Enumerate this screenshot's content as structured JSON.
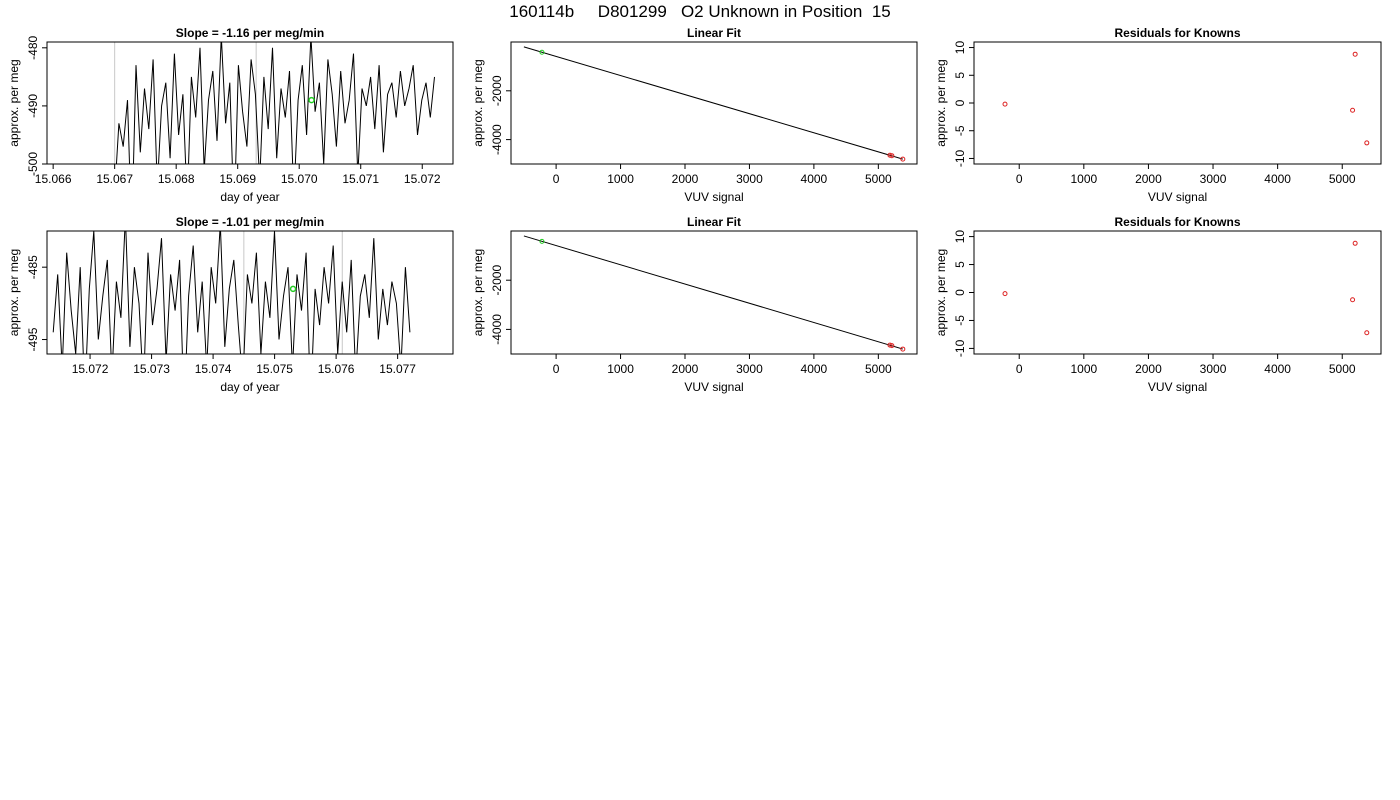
{
  "figure": {
    "title": "160114b     D801299   O2 Unknown in Position  15"
  },
  "chart_data": [
    {
      "type": "line",
      "title": "Slope =  -1.16  per meg/min",
      "xlabel": "day of year",
      "ylabel": "approx. per meg",
      "xlim": [
        15.0659,
        15.0725
      ],
      "ylim": [
        -500,
        -479
      ],
      "xticks": [
        "15.066",
        "15.067",
        "15.068",
        "15.069",
        "15.070",
        "15.071",
        "15.072"
      ],
      "yticks": [
        "-480",
        "-490",
        "-500"
      ],
      "trace": {
        "x_start": 15.067,
        "x_end": 15.0722,
        "values": [
          -505,
          -493,
          -497,
          -489,
          -512,
          -483,
          -498,
          -487,
          -494,
          -482,
          -504,
          -490,
          -486,
          -499,
          -481,
          -495,
          -488,
          -507,
          -485,
          -492,
          -480,
          -501,
          -489,
          -484,
          -496,
          -478,
          -493,
          -486,
          -510,
          -483,
          -491,
          -497,
          -482,
          -488,
          -503,
          -485,
          -494,
          -480,
          -499,
          -487,
          -492,
          -484,
          -506,
          -489,
          -483,
          -495,
          -478,
          -491,
          -486,
          -500,
          -482,
          -488,
          -497,
          -484,
          -493,
          -489,
          -481,
          -502,
          -487,
          -490,
          -485,
          -494,
          -483,
          -498,
          -488,
          -486,
          -492,
          -484,
          -490,
          -487,
          -483,
          -495,
          -489,
          -486,
          -492,
          -485
        ]
      },
      "marker": {
        "x": 15.0702,
        "y": -489
      },
      "vlines": [
        15.067,
        15.0693
      ],
      "colors": {
        "line": "#000000",
        "marker": "#22cc22",
        "vline": "#c8c8c8"
      }
    },
    {
      "type": "scatter",
      "title": "Linear Fit",
      "xlabel": "VUV signal",
      "ylabel": "approx. per meg",
      "xlim": [
        -700,
        5600
      ],
      "ylim": [
        -5000,
        0
      ],
      "xticks": [
        "0",
        "1000",
        "2000",
        "3000",
        "4000",
        "5000"
      ],
      "yticks": [
        "-2000",
        "-4000"
      ],
      "fit_line": [
        [
          -500,
          -200
        ],
        [
          5380,
          -4800
        ]
      ],
      "points": [
        {
          "x": -220,
          "y": -420,
          "color": "#22cc22"
        },
        {
          "x": 5180,
          "y": -4640,
          "color": "#dd2222"
        },
        {
          "x": 5210,
          "y": -4660,
          "color": "#dd2222"
        },
        {
          "x": 5380,
          "y": -4800,
          "color": "#dd2222"
        }
      ]
    },
    {
      "type": "scatter",
      "title": "Residuals for Knowns",
      "xlabel": "VUV signal",
      "ylabel": "approx. per meg",
      "xlim": [
        -700,
        5600
      ],
      "ylim": [
        -11,
        11
      ],
      "xticks": [
        "0",
        "1000",
        "2000",
        "3000",
        "4000",
        "5000"
      ],
      "yticks": [
        "10",
        "5",
        "0",
        "-5",
        "-10"
      ],
      "points": [
        {
          "x": -220,
          "y": -0.2,
          "color": "#dd2222"
        },
        {
          "x": 5200,
          "y": 8.8,
          "color": "#dd2222"
        },
        {
          "x": 5160,
          "y": -1.3,
          "color": "#dd2222"
        },
        {
          "x": 5380,
          "y": -7.2,
          "color": "#dd2222"
        }
      ]
    },
    {
      "type": "line",
      "title": "Slope =  -1.01  per meg/min",
      "xlabel": "day of year",
      "ylabel": "approx. per meg",
      "xlim": [
        15.0713,
        15.0779
      ],
      "ylim": [
        -497,
        -480
      ],
      "xticks": [
        "15.072",
        "15.073",
        "15.074",
        "15.075",
        "15.076",
        "15.077"
      ],
      "yticks": [
        "-485",
        "-495"
      ],
      "trace": {
        "x_start": 15.0714,
        "x_end": 15.0772,
        "values": [
          -494,
          -486,
          -499,
          -483,
          -491,
          -497,
          -485,
          -503,
          -488,
          -480,
          -495,
          -489,
          -484,
          -500,
          -487,
          -492,
          -478,
          -496,
          -485,
          -490,
          -502,
          -483,
          -493,
          -488,
          -481,
          -498,
          -486,
          -491,
          -484,
          -505,
          -489,
          -482,
          -494,
          -487,
          -499,
          -485,
          -490,
          -479,
          -496,
          -488,
          -484,
          -493,
          -501,
          -486,
          -490,
          -483,
          -497,
          -487,
          -492,
          -480,
          -495,
          -489,
          -485,
          -499,
          -486,
          -491,
          -483,
          -504,
          -488,
          -493,
          -485,
          -490,
          -482,
          -497,
          -487,
          -494,
          -484,
          -500,
          -489,
          -486,
          -492,
          -481,
          -495,
          -488,
          -493,
          -487,
          -490,
          -499,
          -485,
          -494
        ]
      },
      "marker": {
        "x": 15.0753,
        "y": -488
      },
      "vlines": [
        15.0745,
        15.0761
      ],
      "colors": {
        "line": "#000000",
        "marker": "#22cc22",
        "vline": "#c8c8c8"
      }
    },
    {
      "type": "scatter",
      "title": "Linear Fit",
      "xlabel": "VUV signal",
      "ylabel": "approx. per meg",
      "xlim": [
        -700,
        5600
      ],
      "ylim": [
        -5000,
        0
      ],
      "xticks": [
        "0",
        "1000",
        "2000",
        "3000",
        "4000",
        "5000"
      ],
      "yticks": [
        "-2000",
        "-4000"
      ],
      "fit_line": [
        [
          -500,
          -200
        ],
        [
          5380,
          -4800
        ]
      ],
      "points": [
        {
          "x": -220,
          "y": -420,
          "color": "#22cc22"
        },
        {
          "x": 5180,
          "y": -4640,
          "color": "#dd2222"
        },
        {
          "x": 5210,
          "y": -4660,
          "color": "#dd2222"
        },
        {
          "x": 5380,
          "y": -4800,
          "color": "#dd2222"
        }
      ]
    },
    {
      "type": "scatter",
      "title": "Residuals for Knowns",
      "xlabel": "VUV signal",
      "ylabel": "approx. per meg",
      "xlim": [
        -700,
        5600
      ],
      "ylim": [
        -11,
        11
      ],
      "xticks": [
        "0",
        "1000",
        "2000",
        "3000",
        "4000",
        "5000"
      ],
      "yticks": [
        "10",
        "5",
        "0",
        "-5",
        "-10"
      ],
      "points": [
        {
          "x": -220,
          "y": -0.2,
          "color": "#dd2222"
        },
        {
          "x": 5200,
          "y": 8.8,
          "color": "#dd2222"
        },
        {
          "x": 5160,
          "y": -1.3,
          "color": "#dd2222"
        },
        {
          "x": 5380,
          "y": -7.2,
          "color": "#dd2222"
        }
      ]
    }
  ]
}
